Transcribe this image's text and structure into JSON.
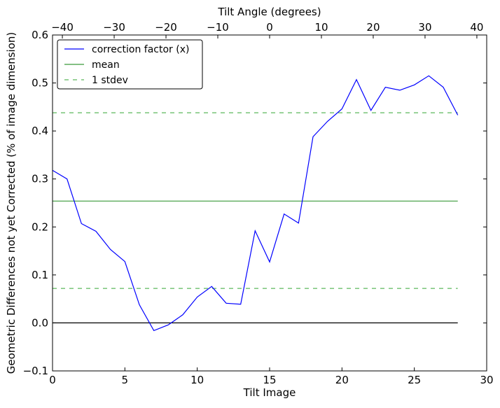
{
  "chart_data": {
    "type": "line",
    "xlabel": "Tilt Image",
    "ylabel": "Geometric Differences not yet Corrected (% of image dimension)",
    "top_xlabel": "Tilt Angle (degrees)",
    "xlim": [
      0,
      30
    ],
    "ylim": [
      -0.1,
      0.6
    ],
    "top_xlim": [
      -41.9,
      41.9
    ],
    "xticks": [
      0,
      5,
      10,
      15,
      20,
      25,
      30
    ],
    "yticks": [
      -0.1,
      0.0,
      0.1,
      0.2,
      0.3,
      0.4,
      0.5,
      0.6
    ],
    "ytick_labels": [
      "−0.1",
      "0.0",
      "0.1",
      "0.2",
      "0.3",
      "0.4",
      "0.5",
      "0.6"
    ],
    "top_xticks": [
      -40,
      -30,
      -20,
      -10,
      0,
      10,
      20,
      30,
      40
    ],
    "top_xtick_labels": [
      "−40",
      "−30",
      "−20",
      "−10",
      "0",
      "10",
      "20",
      "30",
      "40"
    ],
    "grid": false,
    "legend_position": "top-left",
    "series": [
      {
        "name": "correction factor (x)",
        "color": "#0000ff",
        "style": "solid",
        "x": [
          0,
          1,
          2,
          3,
          4,
          5,
          6,
          7,
          8,
          9,
          10,
          11,
          12,
          13,
          14,
          15,
          16,
          17,
          18,
          19,
          20,
          21,
          22,
          23,
          24,
          25,
          26,
          27,
          28
        ],
        "y": [
          0.318,
          0.3,
          0.207,
          0.191,
          0.153,
          0.128,
          0.038,
          -0.016,
          -0.004,
          0.017,
          0.054,
          0.076,
          0.041,
          0.039,
          0.192,
          0.127,
          0.227,
          0.208,
          0.388,
          0.42,
          0.446,
          0.507,
          0.443,
          0.491,
          0.485,
          0.496,
          0.515,
          0.491,
          0.433
        ]
      },
      {
        "name": "mean",
        "color": "#3a9a3a",
        "style": "solid",
        "x": [
          0,
          28
        ],
        "y": [
          0.254,
          0.254
        ]
      },
      {
        "name": "1 stdev",
        "color": "#5cb85c",
        "style": "dashed",
        "x": [
          0,
          28
        ],
        "y": [
          0.438,
          0.438
        ]
      },
      {
        "name": "",
        "color": "#5cb85c",
        "style": "dashed",
        "x": [
          0,
          28
        ],
        "y": [
          0.072,
          0.072
        ]
      },
      {
        "name": "",
        "color": "#000000",
        "style": "solid",
        "x": [
          0,
          28
        ],
        "y": [
          0.0,
          0.0
        ]
      }
    ]
  }
}
